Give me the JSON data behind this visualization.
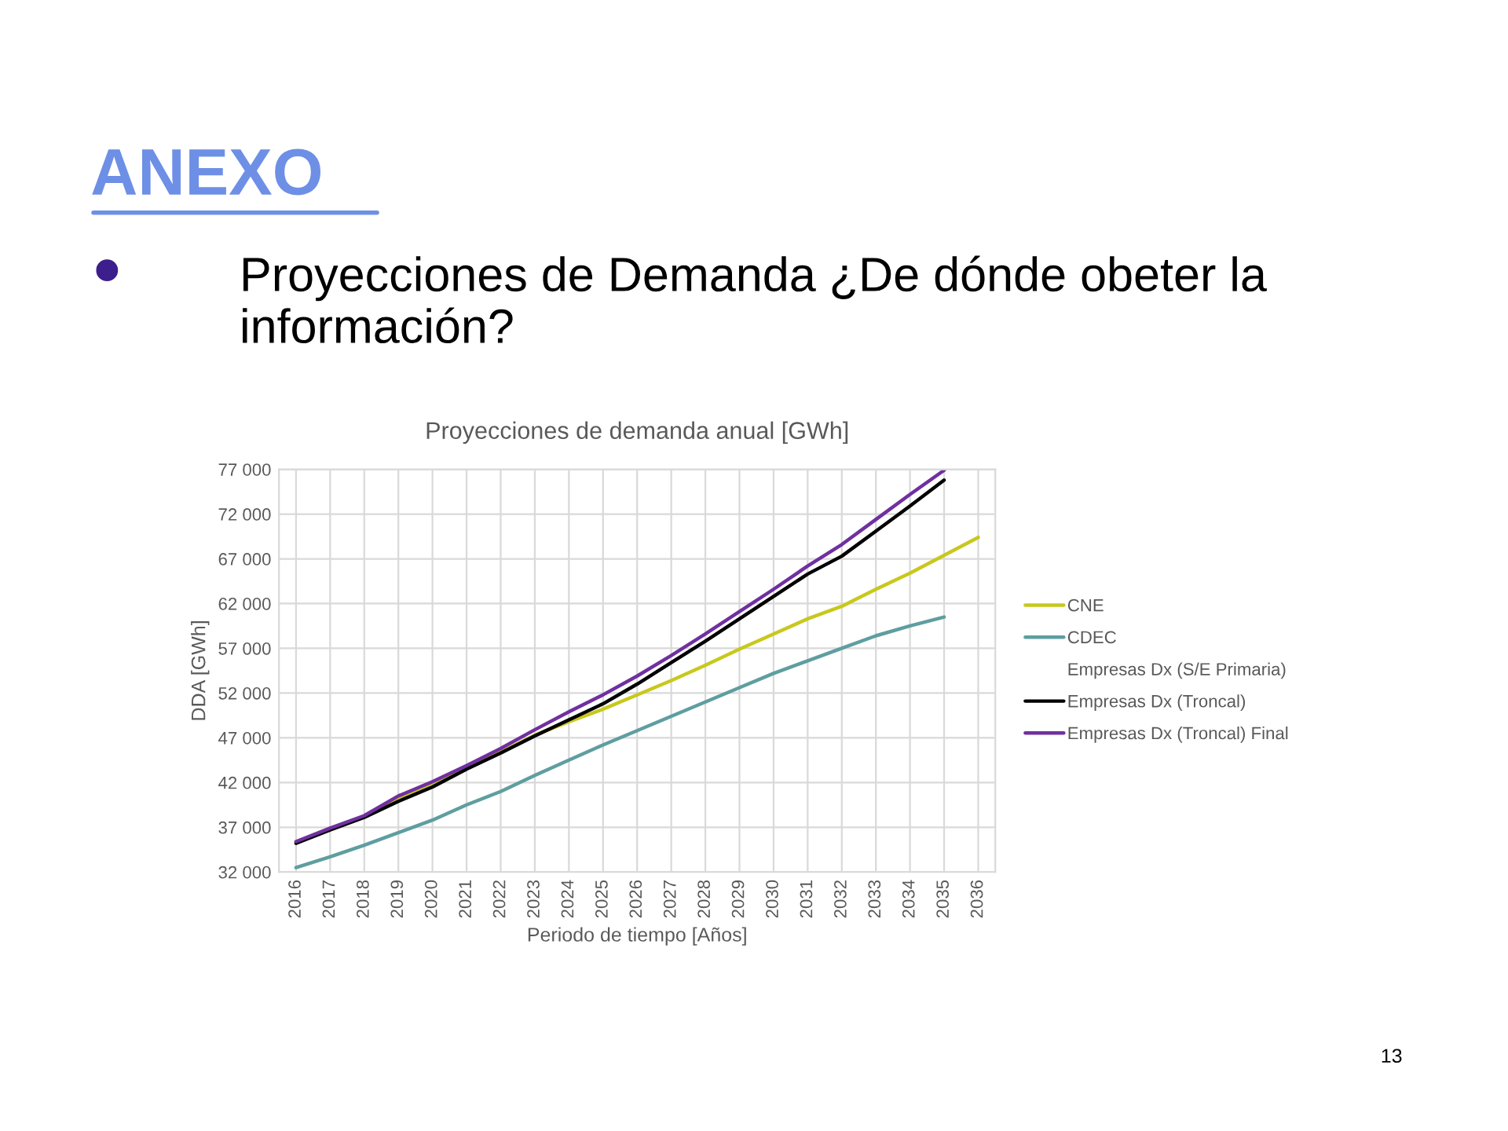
{
  "chart_data": {
    "type": "line",
    "title": "Proyecciones de demanda anual [GWh]",
    "xlabel": "Periodo de tiempo [Años]",
    "ylabel": "DDA [GWh]",
    "annotations": [
      "ANEXO",
      "Proyecciones de Demanda ¿De dónde obeter la información?",
      "13"
    ],
    "categories": [
      "2016",
      "2017",
      "2018",
      "2019",
      "2020",
      "2021",
      "2022",
      "2023",
      "2024",
      "2025",
      "2026",
      "2027",
      "2028",
      "2029",
      "2030",
      "2031",
      "2032",
      "2033",
      "2034",
      "2035",
      "2036"
    ],
    "series": [
      {
        "name": "CNE",
        "color": "#c8c81e",
        "values": [
          35300,
          36800,
          38200,
          40300,
          41800,
          43600,
          45400,
          47300,
          48800,
          50200,
          51800,
          53400,
          55100,
          56900,
          58600,
          60300,
          61700,
          63600,
          65400,
          67400,
          69400
        ]
      },
      {
        "name": "CDEC",
        "color": "#5f9ea0",
        "values": [
          32500,
          33700,
          35000,
          36400,
          37800,
          39500,
          41000,
          42800,
          44500,
          46200,
          47800,
          49400,
          51000,
          52600,
          54200,
          55600,
          57000,
          58400,
          59500,
          60500,
          null
        ]
      },
      {
        "name": "Empresas Dx (S/E Primaria)",
        "values": [
          null,
          null,
          null,
          null,
          null,
          null,
          null,
          null,
          null,
          null,
          null,
          null,
          null,
          null,
          null,
          null,
          null,
          null,
          null,
          null,
          null
        ]
      },
      {
        "name": "Empresas Dx (Troncal)",
        "color": "#000000",
        "values": [
          35200,
          36700,
          38100,
          39900,
          41500,
          43500,
          45300,
          47200,
          49000,
          50800,
          53000,
          55400,
          57800,
          60300,
          62800,
          65300,
          67300,
          70100,
          72900,
          75800,
          null
        ]
      },
      {
        "name": "Empresas Dx (Troncal) Final",
        "color": "#7030a0",
        "values": [
          35400,
          36900,
          38300,
          40500,
          42100,
          43900,
          45800,
          47900,
          49900,
          51800,
          53900,
          56200,
          58600,
          61100,
          63600,
          66200,
          68600,
          71400,
          74200,
          76900,
          null
        ]
      }
    ],
    "ylim": [
      32000,
      77000
    ],
    "yticks": [
      {
        "value": 32000,
        "label": "32 000"
      },
      {
        "value": 37000,
        "label": "37 000"
      },
      {
        "value": 42000,
        "label": "42 000"
      },
      {
        "value": 47000,
        "label": "47 000"
      },
      {
        "value": 52000,
        "label": "52 000"
      },
      {
        "value": 57000,
        "label": "57 000"
      },
      {
        "value": 62000,
        "label": "62 000"
      },
      {
        "value": 67000,
        "label": "67 000"
      },
      {
        "value": 72000,
        "label": "72 000"
      },
      {
        "value": 77000,
        "label": "77 000"
      }
    ],
    "grid": true,
    "legend": "right",
    "marker": "none",
    "line_style": "solid"
  }
}
